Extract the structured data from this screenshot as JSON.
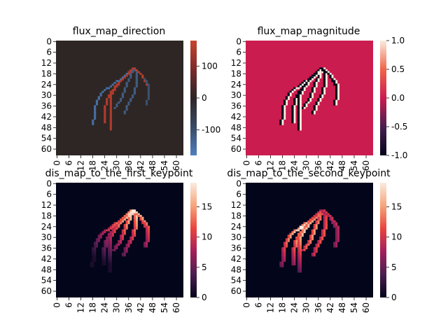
{
  "chart_data": [
    {
      "type": "heatmap",
      "title": "flux_map_direction",
      "rows": 64,
      "cols": 64,
      "yticks": [
        "0",
        "6",
        "12",
        "18",
        "24",
        "30",
        "36",
        "42",
        "48",
        "54",
        "60"
      ],
      "xticks": [
        "0",
        "6",
        "12",
        "18",
        "24",
        "30",
        "36",
        "42",
        "48",
        "54",
        "60"
      ],
      "colorbar": {
        "min": -180,
        "max": 180,
        "ticks": [
          100,
          0,
          -100
        ],
        "colors": [
          "#4f7fbf",
          "#384a63",
          "#2d2528",
          "#7a2a2a",
          "#c8442e"
        ]
      },
      "background": "#2d2624",
      "strokes": [
        {
          "path": [
            [
              38,
              15
            ],
            [
              37,
              19
            ],
            [
              35,
              24
            ],
            [
              33,
              30
            ],
            [
              31,
              34
            ],
            [
              29,
              37
            ]
          ],
          "value": -120
        },
        {
          "path": [
            [
              38,
              15
            ],
            [
              35,
              19
            ],
            [
              31,
              23
            ],
            [
              27,
              28
            ],
            [
              25,
              33
            ],
            [
              24,
              37
            ],
            [
              24,
              45
            ]
          ],
          "value": 150
        },
        {
          "path": [
            [
              37,
              16
            ],
            [
              33,
              20
            ],
            [
              28,
              24
            ],
            [
              23,
              28
            ],
            [
              21,
              31
            ],
            [
              20,
              33
            ],
            [
              19,
              37
            ],
            [
              19,
              40
            ],
            [
              18,
              46
            ]
          ],
          "value": -150
        },
        {
          "path": [
            [
              38,
              15
            ],
            [
              33,
              21
            ],
            [
              29,
              26
            ],
            [
              27,
              31
            ],
            [
              27,
              40
            ],
            [
              27,
              49
            ]
          ],
          "value": 150
        },
        {
          "path": [
            [
              39,
              15
            ],
            [
              40,
              19
            ],
            [
              40,
              23
            ],
            [
              39,
              28
            ],
            [
              37,
              32
            ],
            [
              35,
              36
            ],
            [
              34,
              40
            ]
          ],
          "value": -120
        },
        {
          "path": [
            [
              39,
              15
            ],
            [
              42,
              18
            ],
            [
              44,
              21
            ],
            [
              45,
              24
            ]
          ],
          "value": 160
        },
        {
          "path": [
            [
              44,
              21
            ],
            [
              46,
              25
            ],
            [
              46,
              29
            ],
            [
              45,
              35
            ]
          ],
          "value": -100
        }
      ]
    },
    {
      "type": "heatmap",
      "title": "flux_map_magnitude",
      "rows": 64,
      "cols": 64,
      "yticks": [
        "0",
        "6",
        "12",
        "18",
        "24",
        "30",
        "36",
        "42",
        "48",
        "54",
        "60"
      ],
      "xticks": [
        "0",
        "6",
        "12",
        "18",
        "24",
        "30",
        "36",
        "42",
        "48",
        "54",
        "60"
      ],
      "colorbar": {
        "min": -1.0,
        "max": 1.0,
        "ticks": [
          "1.0",
          "0.5",
          "0.0",
          "-0.5",
          "-1.0"
        ],
        "colors": [
          "#03051a",
          "#4a1d50",
          "#cb1b4f",
          "#f0654a",
          "#faebdd"
        ]
      },
      "background": "#cb1c4f"
    },
    {
      "type": "heatmap",
      "title": "dis_map_to_the_first_keypoint",
      "rows": 64,
      "cols": 64,
      "yticks": [
        "0",
        "6",
        "12",
        "18",
        "24",
        "30",
        "36",
        "42",
        "48",
        "54",
        "60"
      ],
      "xticks": [
        "0",
        "6",
        "12",
        "18",
        "24",
        "30",
        "36",
        "42",
        "48",
        "54",
        "60"
      ],
      "colorbar": {
        "min": 0,
        "max": 19,
        "ticks": [
          15,
          10,
          5,
          0
        ],
        "colors": [
          "#03051a",
          "#4a1d50",
          "#a31f5b",
          "#e9443e",
          "#f6a47b",
          "#faebdd"
        ]
      },
      "background": "#03051a",
      "keypoint": [
        38,
        15
      ]
    },
    {
      "type": "heatmap",
      "title": "dis_map_to_the_second_keypoint",
      "rows": 64,
      "cols": 64,
      "yticks": [
        "0",
        "6",
        "12",
        "18",
        "24",
        "30",
        "36",
        "42",
        "48",
        "54",
        "60"
      ],
      "xticks": [
        "0",
        "6",
        "12",
        "18",
        "24",
        "30",
        "36",
        "42",
        "48",
        "54",
        "60"
      ],
      "colorbar": {
        "min": 0,
        "max": 19,
        "ticks": [
          15,
          10,
          5,
          0
        ],
        "colors": [
          "#03051a",
          "#4a1d50",
          "#a31f5b",
          "#e9443e",
          "#f6a47b",
          "#faebdd"
        ]
      },
      "background": "#03051a",
      "keypoint": [
        27,
        24
      ]
    }
  ]
}
